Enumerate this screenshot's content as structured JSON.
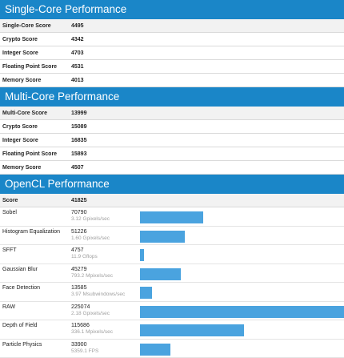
{
  "single_core": {
    "title": "Single-Core Performance",
    "rows": [
      {
        "label": "Single-Core Score",
        "value": "4495"
      },
      {
        "label": "Crypto Score",
        "value": "4342"
      },
      {
        "label": "Integer Score",
        "value": "4703"
      },
      {
        "label": "Floating Point Score",
        "value": "4531"
      },
      {
        "label": "Memory Score",
        "value": "4013"
      }
    ]
  },
  "multi_core": {
    "title": "Multi-Core Performance",
    "rows": [
      {
        "label": "Multi-Core Score",
        "value": "13999"
      },
      {
        "label": "Crypto Score",
        "value": "15089"
      },
      {
        "label": "Integer Score",
        "value": "16835"
      },
      {
        "label": "Floating Point Score",
        "value": "15893"
      },
      {
        "label": "Memory Score",
        "value": "4507"
      }
    ]
  },
  "opencl": {
    "title": "OpenCL Performance",
    "score_label": "Score",
    "score_value": "41825",
    "colors": {
      "bar": "#4aa3df",
      "header": "#1a86c8"
    },
    "rows": [
      {
        "label": "Sobel",
        "score": "70790",
        "rate": "3.12 Gpixels/sec",
        "bar_fraction": 0.31
      },
      {
        "label": "Histogram Equalization",
        "score": "51226",
        "rate": "1.60 Gpixels/sec",
        "bar_fraction": 0.22
      },
      {
        "label": "SFFT",
        "score": "4757",
        "rate": "11.9 Gflops",
        "bar_fraction": 0.02
      },
      {
        "label": "Gaussian Blur",
        "score": "45279",
        "rate": "793.2 Mpixels/sec",
        "bar_fraction": 0.2
      },
      {
        "label": "Face Detection",
        "score": "13585",
        "rate": "3.97 Msubwindows/sec",
        "bar_fraction": 0.06
      },
      {
        "label": "RAW",
        "score": "225074",
        "rate": "2.18 Gpixels/sec",
        "bar_fraction": 1.0
      },
      {
        "label": "Depth of Field",
        "score": "115686",
        "rate": "336.1 Mpixels/sec",
        "bar_fraction": 0.51
      },
      {
        "label": "Particle Physics",
        "score": "33900",
        "rate": "5359.1 FPS",
        "bar_fraction": 0.15
      }
    ]
  }
}
